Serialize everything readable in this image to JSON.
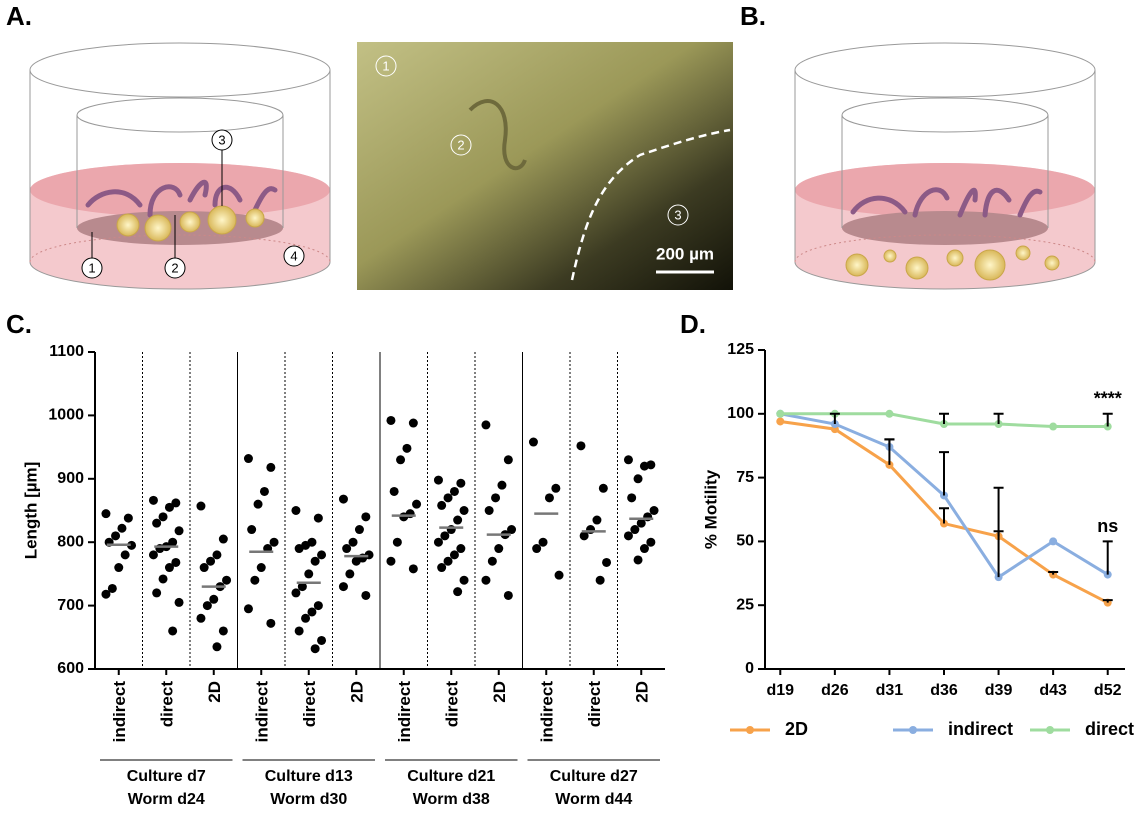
{
  "panels": {
    "a": {
      "label": "A.",
      "callouts": [
        "1",
        "2",
        "3",
        "4"
      ]
    },
    "micrograph": {
      "callouts": [
        "1",
        "2",
        "3"
      ],
      "scale_bar": "200 µm"
    },
    "b": {
      "label": "B."
    }
  },
  "chart_data": [
    {
      "panel_label": "C.",
      "type": "strip",
      "ylabel": "Length [µm]",
      "categories": [
        "indirect",
        "direct",
        "2D",
        "indirect",
        "direct",
        "2D",
        "indirect",
        "direct",
        "2D",
        "indirect",
        "direct",
        "2D"
      ],
      "values": [
        [
          845,
          838,
          822,
          810,
          800,
          795,
          780,
          760,
          727,
          718
        ],
        [
          866,
          862,
          855,
          840,
          830,
          818,
          800,
          793,
          790,
          780,
          768,
          760,
          742,
          720,
          705,
          660
        ],
        [
          857,
          805,
          780,
          770,
          760,
          740,
          730,
          710,
          700,
          680,
          660,
          635
        ],
        [
          932,
          918,
          880,
          860,
          820,
          800,
          790,
          760,
          740,
          695,
          672
        ],
        [
          850,
          838,
          800,
          795,
          790,
          780,
          770,
          750,
          730,
          720,
          700,
          690,
          680,
          660,
          645,
          632
        ],
        [
          868,
          840,
          820,
          800,
          790,
          780,
          775,
          770,
          750,
          730,
          716
        ],
        [
          992,
          988,
          948,
          930,
          880,
          860,
          845,
          840,
          800,
          770,
          758
        ],
        [
          898,
          893,
          880,
          870,
          858,
          850,
          835,
          820,
          810,
          800,
          790,
          780,
          770,
          760,
          740,
          722
        ],
        [
          985,
          930,
          890,
          870,
          850,
          820,
          812,
          790,
          770,
          740,
          716
        ],
        [
          958,
          885,
          870,
          800,
          790,
          748
        ],
        [
          952,
          885,
          835,
          820,
          810,
          768,
          740
        ],
        [
          930,
          922,
          920,
          900,
          870,
          850,
          840,
          830,
          820,
          810,
          800,
          790,
          772
        ]
      ],
      "medians": [
        796,
        793,
        730,
        785,
        736,
        778,
        842,
        823,
        812,
        845,
        817,
        837
      ],
      "groups": [
        [
          "Culture d7",
          "Worm d24"
        ],
        [
          "Culture d13",
          "Worm d30"
        ],
        [
          "Culture d21",
          "Worm d38"
        ],
        [
          "Culture d27",
          "Worm d44"
        ]
      ],
      "ylim": [
        600,
        1100
      ],
      "yticks": [
        600,
        700,
        800,
        900,
        1000,
        1100
      ],
      "point_color": "#000000",
      "median_color": "#777777"
    },
    {
      "panel_label": "D.",
      "type": "line",
      "ylabel": "% Motility",
      "categories": [
        "d19",
        "d26",
        "d31",
        "d36",
        "d39",
        "d43",
        "d52"
      ],
      "series": [
        {
          "name": "2D",
          "color": "#f7a24a",
          "values": [
            97,
            94,
            80,
            57,
            52,
            37,
            26
          ],
          "errors": [
            null,
            null,
            10,
            6,
            2,
            1,
            1
          ]
        },
        {
          "name": "indirect",
          "color": "#8aaee0",
          "values": [
            100,
            96,
            87,
            68,
            36,
            50,
            37
          ],
          "errors": [
            null,
            4,
            3,
            17,
            35,
            null,
            13
          ]
        },
        {
          "name": "direct",
          "color": "#9fdc9f",
          "values": [
            100,
            100,
            100,
            96,
            96,
            95,
            95
          ],
          "errors": [
            null,
            null,
            null,
            4,
            4,
            null,
            5
          ]
        }
      ],
      "annotations": [
        "****",
        "ns"
      ],
      "ylim": [
        0,
        125
      ],
      "yticks": [
        0,
        25,
        50,
        75,
        100,
        125
      ]
    }
  ]
}
